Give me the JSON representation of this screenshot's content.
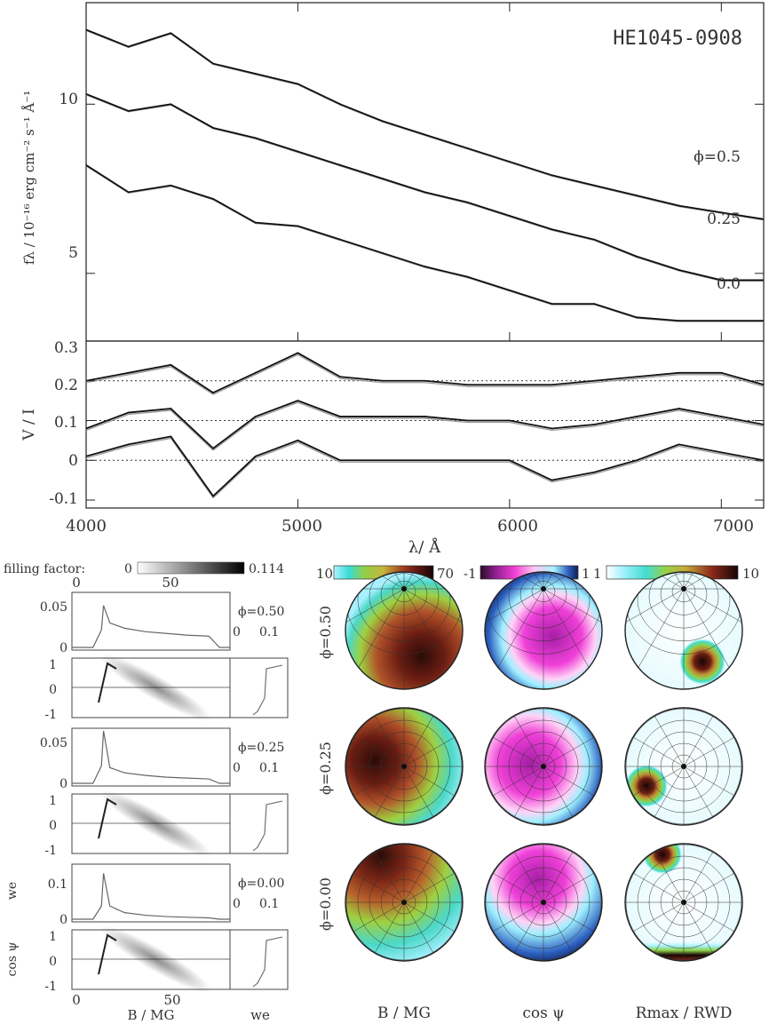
{
  "object_name": "HE1045-0908",
  "spectra": {
    "ylabel": "fλ / 10⁻¹⁶ erg cm⁻² s⁻¹ Å⁻¹",
    "yticks": [
      "10",
      "5"
    ],
    "ytick_values": [
      10,
      5
    ],
    "phase_labels": [
      "ϕ=0.5",
      "0.25",
      "0.0"
    ]
  },
  "polarization": {
    "ylabel": "V / I",
    "yticks": [
      "0.3",
      "0.2",
      "0.1",
      "0",
      "-0.1"
    ],
    "ytick_values": [
      0.3,
      0.2,
      0.1,
      0,
      -0.1
    ]
  },
  "wavelength_axis": {
    "label": "λ/ Å",
    "ticks": [
      "4000",
      "5000",
      "6000",
      "7000"
    ],
    "tick_values": [
      4000,
      5000,
      6000,
      7000
    ]
  },
  "histograms": {
    "filling_factor_label": "filling factor:",
    "ff_min": "0",
    "ff_max": "0.114",
    "top_ticks": [
      "0",
      "50"
    ],
    "phase_labels": [
      "ϕ=0.50",
      "ϕ=0.25",
      "ϕ=0.00"
    ],
    "hist_yticks": [
      "0.05",
      "0",
      "0.05",
      "0",
      "0.1",
      "0"
    ],
    "cos_ticks": [
      "1",
      "0",
      "-1"
    ],
    "we_ticks": [
      "0",
      "0.1"
    ],
    "ylabel_we": "we",
    "ylabel_cos": "cos ψ",
    "bottom_ticks": [
      "0",
      "50"
    ],
    "xlabel_b": "B / MG",
    "xlabel_we": "we"
  },
  "maps": {
    "colorbars": [
      {
        "min": "10",
        "max": "70"
      },
      {
        "min": "-1",
        "max": "1"
      },
      {
        "min": "1",
        "max": "10"
      }
    ],
    "row_labels": [
      "ϕ=0.50",
      "ϕ=0.25",
      "ϕ=0.00"
    ],
    "col_labels": [
      "B / MG",
      "cos ψ",
      "Rmax / RWD"
    ]
  },
  "chart_data": [
    {
      "type": "line",
      "title": "HE1045-0908",
      "xlabel": "λ/ Å",
      "ylabel": "fλ / 10⁻¹⁶ erg cm⁻² s⁻¹ Å⁻¹",
      "xlim": [
        4000,
        7200
      ],
      "ylim": [
        3.0,
        13.0
      ],
      "x": [
        4000,
        4200,
        4400,
        4600,
        4800,
        5000,
        5200,
        5400,
        5600,
        5800,
        6000,
        6200,
        6400,
        6600,
        6800,
        7000,
        7200
      ],
      "series": [
        {
          "name": "ϕ=0.5",
          "values": [
            12.2,
            11.7,
            12.1,
            11.2,
            10.9,
            10.6,
            10.0,
            9.5,
            9.1,
            8.7,
            8.3,
            7.9,
            7.6,
            7.3,
            7.0,
            6.8,
            6.6
          ]
        },
        {
          "name": "0.25",
          "values": [
            10.3,
            9.8,
            10.0,
            9.3,
            9.0,
            8.6,
            8.2,
            7.8,
            7.4,
            7.1,
            6.7,
            6.3,
            6.0,
            5.5,
            5.1,
            4.8,
            4.8
          ]
        },
        {
          "name": "0.0",
          "values": [
            8.2,
            7.4,
            7.6,
            7.2,
            6.5,
            6.4,
            6.0,
            5.6,
            5.2,
            4.9,
            4.5,
            4.1,
            4.1,
            3.7,
            3.6,
            3.6,
            3.6
          ]
        }
      ]
    },
    {
      "type": "line",
      "xlabel": "λ/ Å",
      "ylabel": "V / I",
      "xlim": [
        4000,
        7200
      ],
      "ylim": [
        -0.12,
        0.3
      ],
      "x": [
        4000,
        4200,
        4400,
        4600,
        4800,
        5000,
        5200,
        5400,
        5600,
        5800,
        6000,
        6200,
        6400,
        6600,
        6800,
        7000,
        7200
      ],
      "reference_lines": [
        0.2,
        0.1,
        0.0
      ],
      "series": [
        {
          "name": "ϕ=0.5",
          "values": [
            0.2,
            0.22,
            0.24,
            0.17,
            0.22,
            0.27,
            0.21,
            0.2,
            0.2,
            0.19,
            0.19,
            0.19,
            0.2,
            0.21,
            0.22,
            0.22,
            0.19
          ]
        },
        {
          "name": "0.25",
          "values": [
            0.08,
            0.12,
            0.13,
            0.03,
            0.11,
            0.15,
            0.11,
            0.11,
            0.11,
            0.1,
            0.1,
            0.08,
            0.09,
            0.11,
            0.13,
            0.11,
            0.09
          ]
        },
        {
          "name": "0.0",
          "values": [
            0.01,
            0.04,
            0.06,
            -0.09,
            0.01,
            0.05,
            0.0,
            0.0,
            0.0,
            0.0,
            0.0,
            -0.05,
            -0.03,
            0.0,
            0.04,
            0.02,
            0.0
          ]
        }
      ]
    },
    {
      "type": "area",
      "xlabel": "B / MG",
      "ylabel": "we",
      "xlim": [
        0,
        75
      ],
      "x": [
        0,
        10,
        14,
        15,
        18,
        25,
        35,
        45,
        55,
        65,
        70,
        75
      ],
      "series": [
        {
          "name": "ϕ=0.50",
          "values": [
            0,
            0,
            0.02,
            0.048,
            0.028,
            0.022,
            0.018,
            0.016,
            0.014,
            0.013,
            0,
            0
          ]
        },
        {
          "name": "ϕ=0.25",
          "values": [
            0,
            0,
            0.02,
            0.06,
            0.018,
            0.012,
            0.009,
            0.007,
            0.006,
            0.005,
            0,
            0
          ]
        },
        {
          "name": "ϕ=0.00",
          "values": [
            0,
            0,
            0.04,
            0.14,
            0.04,
            0.02,
            0.012,
            0.008,
            0.006,
            0.004,
            0,
            0
          ]
        }
      ]
    }
  ]
}
